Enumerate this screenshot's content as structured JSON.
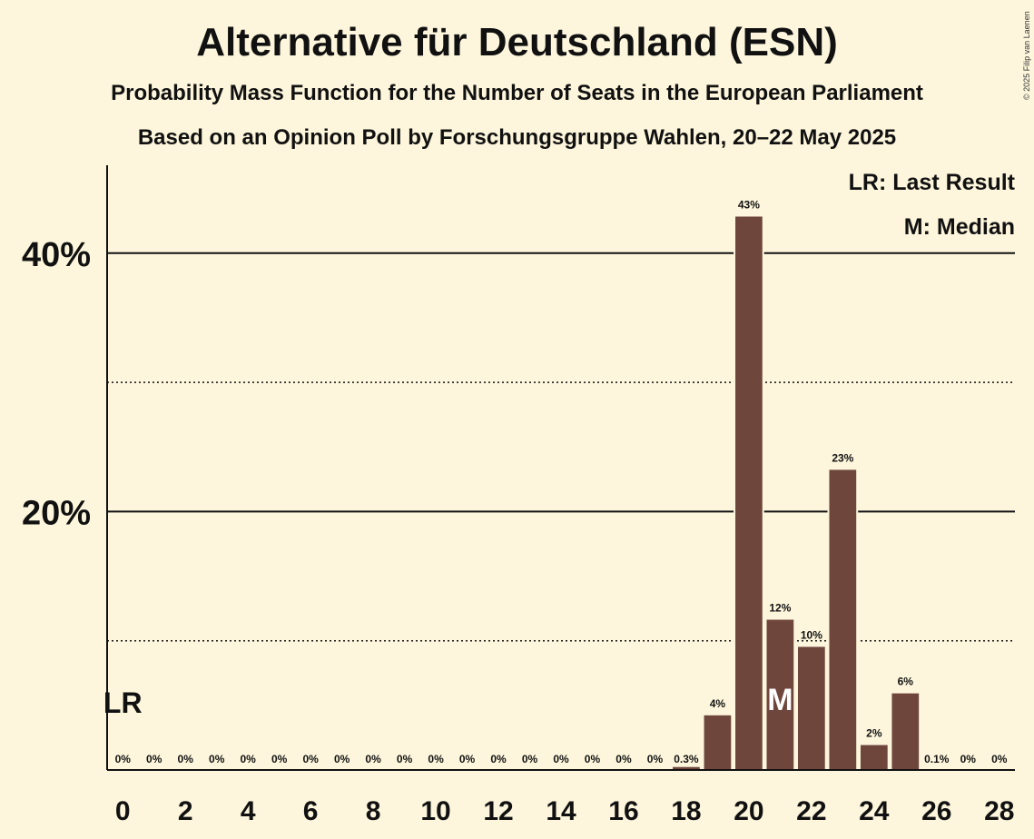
{
  "title": "Alternative für Deutschland (ESN)",
  "subtitle_1": "Probability Mass Function for the Number of Seats in the European Parliament",
  "subtitle_2": "Based on an Opinion Poll by Forschungsgruppe Wahlen, 20–22 May 2025",
  "copyright": "© 2025 Filip van Laenen",
  "legend": {
    "last_result": "LR: Last Result",
    "median": "M: Median"
  },
  "markers": {
    "last_result_label": "LR",
    "last_result_seats": 0,
    "median_label": "M",
    "median_seats": 21
  },
  "colors": {
    "background": "#fdf6dc",
    "bar": "#6e463c",
    "text": "#111111"
  },
  "chart_data": {
    "type": "bar",
    "x": [
      0,
      1,
      2,
      3,
      4,
      5,
      6,
      7,
      8,
      9,
      10,
      11,
      12,
      13,
      14,
      15,
      16,
      17,
      18,
      19,
      20,
      21,
      22,
      23,
      24,
      25,
      26,
      27,
      28
    ],
    "values": [
      0,
      0,
      0,
      0,
      0,
      0,
      0,
      0,
      0,
      0,
      0,
      0,
      0,
      0,
      0,
      0,
      0,
      0,
      0.3,
      4.3,
      42.9,
      11.7,
      9.6,
      23.3,
      2,
      6,
      0.1,
      0,
      0
    ],
    "data_labels": [
      "0%",
      "0%",
      "0%",
      "0%",
      "0%",
      "0%",
      "0%",
      "0%",
      "0%",
      "0%",
      "0%",
      "0%",
      "0%",
      "0%",
      "0%",
      "0%",
      "0%",
      "0%",
      "0.3%",
      "4%",
      "43%",
      "12%",
      "10%",
      "23%",
      "2%",
      "6%",
      "0.1%",
      "0%",
      "0%"
    ],
    "x_tick_labels": [
      "0",
      "2",
      "4",
      "6",
      "8",
      "10",
      "12",
      "14",
      "16",
      "18",
      "20",
      "22",
      "24",
      "26",
      "28"
    ],
    "y_tick_labels": [
      "20%",
      "40%"
    ],
    "y_major_ticks": [
      20,
      40
    ],
    "y_minor_ticks": [
      10,
      30
    ],
    "ylim": [
      0,
      46.8
    ],
    "xlim": [
      -0.5,
      28.5
    ],
    "grid": true,
    "legend_position": "top-right"
  }
}
